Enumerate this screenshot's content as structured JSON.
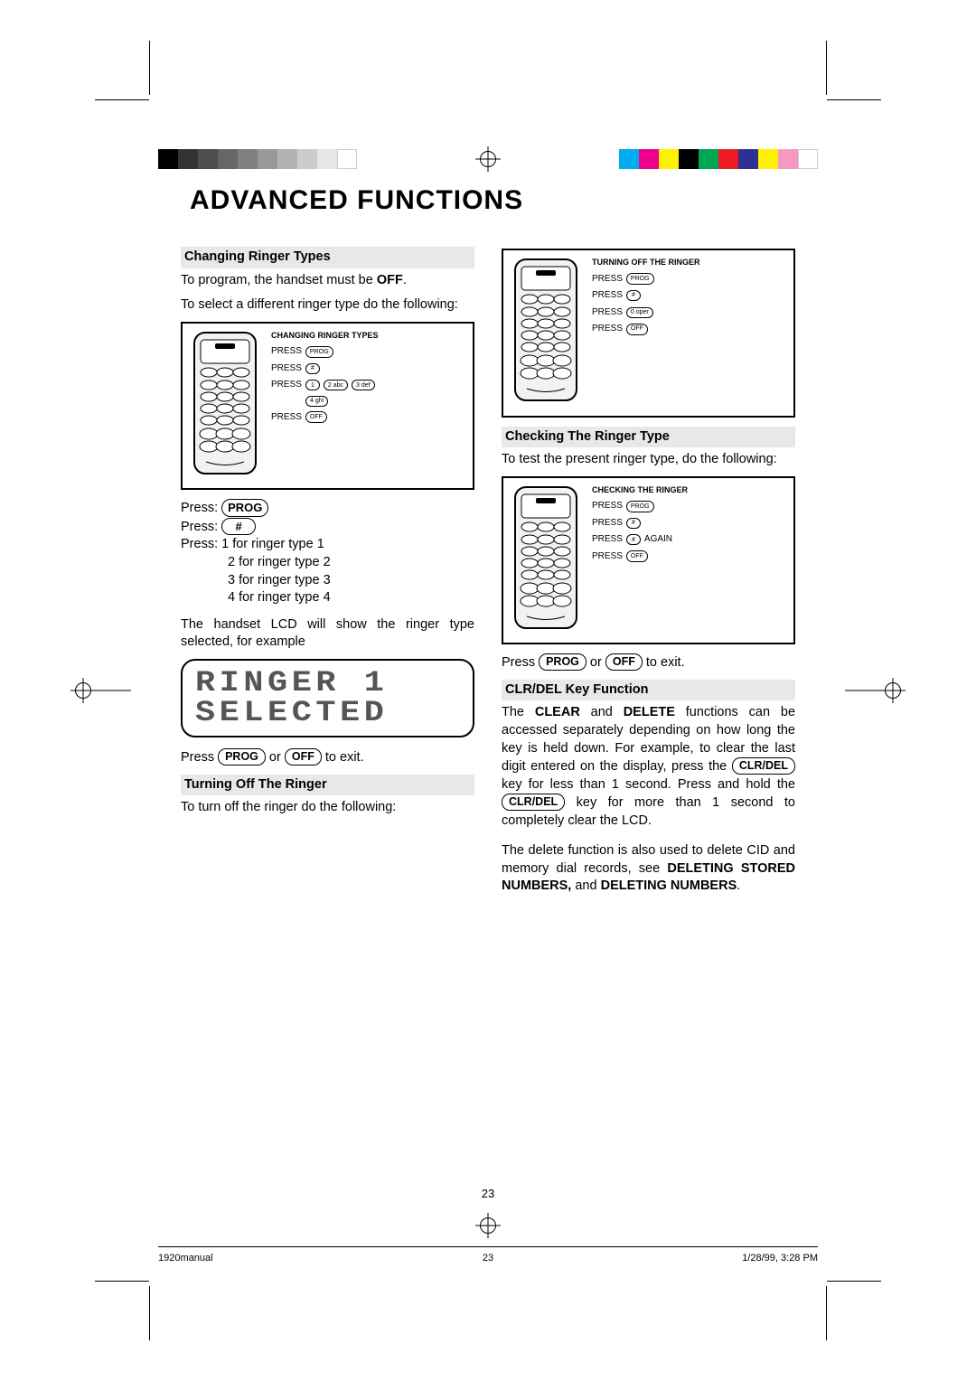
{
  "page": {
    "title": "ADVANCED FUNCTIONS",
    "number_top": "23",
    "footer": {
      "left": "1920manual",
      "mid": "23",
      "right": "1/28/99, 3:28 PM"
    }
  },
  "colorbar": {
    "left": [
      "#000000",
      "#333333",
      "#4d4d4d",
      "#666666",
      "#808080",
      "#999999",
      "#b3b3b3",
      "#cccccc",
      "#e6e6e6",
      "#ffffff"
    ],
    "right": [
      "#00aeef",
      "#ec008c",
      "#fff200",
      "#000000",
      "#00a651",
      "#ed1c24",
      "#2e3192",
      "#fff200",
      "#f49ac1",
      "#ffffff"
    ]
  },
  "left_col": {
    "h1": "Changing Ringer Types",
    "p1a": "To program, the handset must be ",
    "p1b": "OFF",
    "p1c": ".",
    "p2": "To select a different ringer type do the following:",
    "diagram1": {
      "title": "CHANGING RINGER TYPES",
      "lines": [
        "PRESS",
        "PRESS",
        "PRESS",
        "",
        "PRESS"
      ],
      "keys": {
        "l1": "PROG",
        "l2": "#",
        "l3a": "1",
        "l3b": "2 abc",
        "l3c": "3 def",
        "l4": "4 ghi",
        "l5": "OFF"
      }
    },
    "press1a": "Press:  ",
    "press1b": "PROG",
    "press2a": "Press:  ",
    "press2b": "#",
    "press3": "Press: 1 for ringer type 1",
    "press4": "2 for ringer type 2",
    "press5": "3 for ringer type 3",
    "press6": "4 for ringer type 4",
    "p3": "The handset LCD will show the ringer type selected, for example",
    "lcd1": "RINGER 1",
    "lcd2": "SELECTED",
    "exit1a": "Press ",
    "exit_prog": "PROG",
    "exit_or": " or ",
    "exit_off": "OFF",
    "exit1b": " to exit.",
    "h2": "Turning Off The Ringer",
    "p4": "To turn off the ringer do the following:"
  },
  "right_col": {
    "diagram2": {
      "title": "TURNING OFF THE RINGER",
      "lines": [
        "PRESS",
        "PRESS",
        "PRESS",
        "PRESS"
      ],
      "keys": {
        "l1": "PROG",
        "l2": "#",
        "l3": "0 oper",
        "l4": "OFF"
      }
    },
    "h1": "Checking The Ringer Type",
    "p1": "To test the present ringer type, do the following:",
    "diagram3": {
      "title": "CHECKING THE RINGER",
      "lines": [
        "PRESS",
        "PRESS",
        "PRESS",
        "PRESS"
      ],
      "again": "AGAIN",
      "keys": {
        "l1": "PROG",
        "l2": "#",
        "l3": "#",
        "l4": "OFF"
      }
    },
    "exit1a": "Press ",
    "exit_prog": "PROG",
    "exit_or": " or ",
    "exit_off": "OFF",
    "exit1b": " to exit.",
    "h2": "CLR/DEL Key Function",
    "p2a": "The ",
    "p2b": "CLEAR",
    "p2c": " and ",
    "p2d": "DELETE",
    "p2e": " functions can be accessed separately depending on how long the key is held down.  For example,  to clear the last digit entered on  the  display,  press the ",
    "p2f": "CLR/DEL",
    "p2g": " key for less than  1 second.  Press and hold the ",
    "p2h": "CLR/DEL",
    "p2i": " key for more than 1 second  to completely clear the LCD.",
    "p3a": "The delete function is also used to delete CID and memory dial records, see ",
    "p3b": "DELETING STORED NUMBERS,",
    "p3c": " and  ",
    "p3d": "DELETING NUMBERS",
    "p3e": "."
  }
}
